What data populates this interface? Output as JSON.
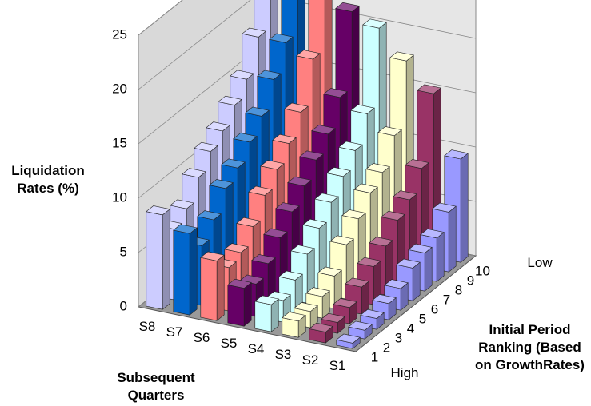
{
  "chart_data": {
    "type": "bar3d",
    "y_label": "Liquidation Rates (%)",
    "x_label": "Subsequent Quarters",
    "z_label": "Initial Period Ranking (Based on GrowthRates)",
    "z_low_label": "Low",
    "z_high_label": "High",
    "categories": [
      "1",
      "2",
      "3",
      "4",
      "5",
      "6",
      "7",
      "8",
      "9",
      "10"
    ],
    "ylim": [
      0,
      25
    ],
    "yticks": [
      0,
      5,
      10,
      15,
      20,
      25
    ],
    "series": [
      {
        "name": "S1",
        "color": "#9999ff",
        "values": [
          0.5,
          0.8,
          1,
          1.5,
          2,
          3,
          3.5,
          4,
          5.5,
          9.5
        ]
      },
      {
        "name": "S2",
        "color": "#993366",
        "values": [
          1,
          1,
          1.5,
          2.5,
          3.5,
          4.5,
          6,
          7,
          9,
          15
        ]
      },
      {
        "name": "S3",
        "color": "#ffffcc",
        "values": [
          1.5,
          1.5,
          2,
          3,
          5,
          6.5,
          8,
          9,
          11.5,
          17.5
        ]
      },
      {
        "name": "S4",
        "color": "#ccffff",
        "values": [
          2.5,
          2,
          3,
          4.5,
          6,
          7.5,
          9,
          10.5,
          13,
          20
        ]
      },
      {
        "name": "S5",
        "color": "#660066",
        "values": [
          3.5,
          3,
          4,
          5.5,
          7,
          8.5,
          10,
          11.5,
          14,
          21
        ]
      },
      {
        "name": "S6",
        "color": "#ff8080",
        "values": [
          5.5,
          4,
          4.5,
          6,
          8,
          9.5,
          11,
          13,
          17,
          23
        ]
      },
      {
        "name": "S7",
        "color": "#0066cc",
        "values": [
          7.5,
          5.5,
          7,
          9,
          10,
          11.5,
          13,
          15.5,
          18,
          24
        ]
      },
      {
        "name": "S8",
        "color": "#ccccff",
        "values": [
          8.7,
          6.5,
          7.5,
          9.5,
          11,
          12,
          13.5,
          15,
          18,
          25
        ]
      }
    ]
  }
}
